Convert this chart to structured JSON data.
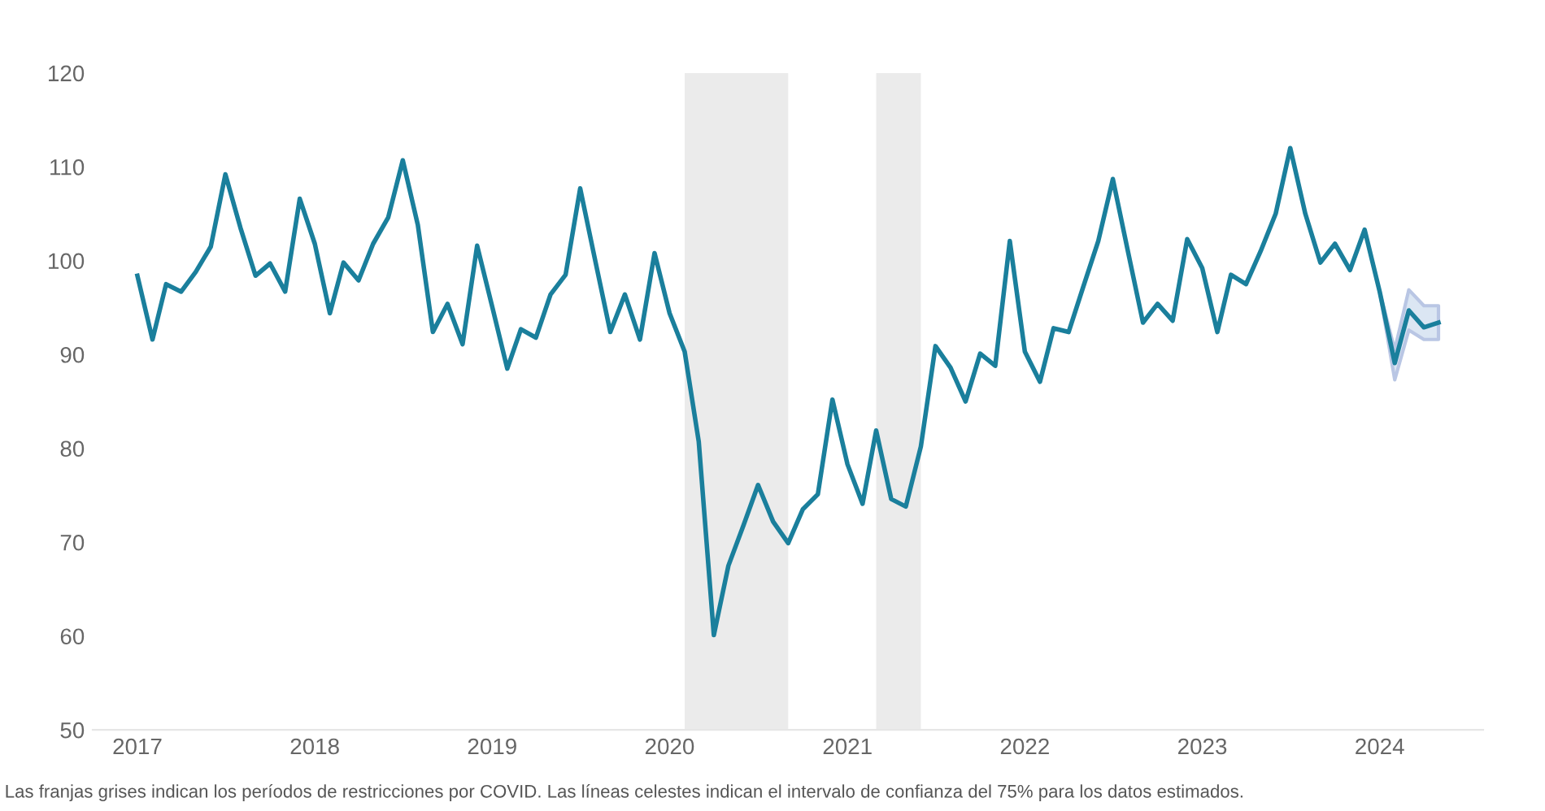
{
  "chart_data": {
    "type": "line",
    "x": [
      "2017-01",
      "2017-02",
      "2017-03",
      "2017-04",
      "2017-05",
      "2017-06",
      "2017-07",
      "2017-08",
      "2017-09",
      "2017-10",
      "2017-11",
      "2017-12",
      "2018-01",
      "2018-02",
      "2018-03",
      "2018-04",
      "2018-05",
      "2018-06",
      "2018-07",
      "2018-08",
      "2018-09",
      "2018-10",
      "2018-11",
      "2018-12",
      "2019-01",
      "2019-02",
      "2019-03",
      "2019-04",
      "2019-05",
      "2019-06",
      "2019-07",
      "2019-08",
      "2019-09",
      "2019-10",
      "2019-11",
      "2019-12",
      "2020-01",
      "2020-02",
      "2020-03",
      "2020-04",
      "2020-05",
      "2020-06",
      "2020-07",
      "2020-08",
      "2020-09",
      "2020-10",
      "2020-11",
      "2020-12",
      "2021-01",
      "2021-02",
      "2021-03",
      "2021-04",
      "2021-05",
      "2021-06",
      "2021-07",
      "2021-08",
      "2021-09",
      "2021-10",
      "2021-11",
      "2021-12",
      "2022-01",
      "2022-02",
      "2022-03",
      "2022-04",
      "2022-05",
      "2022-06",
      "2022-07",
      "2022-08",
      "2022-09",
      "2022-10",
      "2022-11",
      "2022-12",
      "2023-01",
      "2023-02",
      "2023-03",
      "2023-04",
      "2023-05",
      "2023-06",
      "2023-07",
      "2023-08",
      "2023-09",
      "2023-10",
      "2023-11",
      "2023-12",
      "2024-01",
      "2024-02",
      "2024-03",
      "2024-04",
      "2024-05"
    ],
    "series": [
      {
        "color": "#1a7f9c",
        "values": [
          98.4,
          91.6,
          97.5,
          96.7,
          98.8,
          101.5,
          109.2,
          103.5,
          98.4,
          99.7,
          96.7,
          106.6,
          101.8,
          94.4,
          99.8,
          97.9,
          101.8,
          104.6,
          110.7,
          103.8,
          92.4,
          95.4,
          91.1,
          101.6,
          95.1,
          88.5,
          92.7,
          91.8,
          96.4,
          98.5,
          107.7,
          100,
          92.4,
          96.4,
          91.6,
          100.8,
          94.4,
          90.3,
          80.7,
          60.1,
          67.5,
          71.8,
          76.1,
          72.2,
          69.9,
          73.5,
          75.1,
          85.2,
          78.3,
          74.1,
          81.9,
          74.6,
          73.8,
          80.2,
          90.9,
          88.6,
          85.0,
          90.1,
          88.8,
          102.1,
          90.3,
          87.1,
          92.8,
          92.4,
          97.2,
          102.1,
          108.7,
          101.0,
          93.4,
          95.4,
          93.6,
          102.3,
          99.2,
          92.4,
          98.5,
          97.5,
          101.0,
          105.0,
          112.0,
          105.0,
          99.8,
          101.8,
          99.0,
          103.3,
          96.7,
          89.1,
          94.7,
          92.9,
          93.4
        ],
        "lower": [
          null,
          null,
          null,
          null,
          null,
          null,
          null,
          null,
          null,
          null,
          null,
          null,
          null,
          null,
          null,
          null,
          null,
          null,
          null,
          null,
          null,
          null,
          null,
          null,
          null,
          null,
          null,
          null,
          null,
          null,
          null,
          null,
          null,
          null,
          null,
          null,
          null,
          null,
          null,
          null,
          null,
          null,
          null,
          null,
          null,
          null,
          null,
          null,
          null,
          null,
          null,
          null,
          null,
          null,
          null,
          null,
          null,
          null,
          null,
          null,
          null,
          null,
          null,
          null,
          null,
          null,
          null,
          null,
          null,
          null,
          null,
          null,
          null,
          null,
          null,
          null,
          null,
          null,
          null,
          null,
          null,
          null,
          null,
          null,
          96.7,
          87.3,
          92.6,
          91.6,
          91.6
        ],
        "upper": [
          null,
          null,
          null,
          null,
          null,
          null,
          null,
          null,
          null,
          null,
          null,
          null,
          null,
          null,
          null,
          null,
          null,
          null,
          null,
          null,
          null,
          null,
          null,
          null,
          null,
          null,
          null,
          null,
          null,
          null,
          null,
          null,
          null,
          null,
          null,
          null,
          null,
          null,
          null,
          null,
          null,
          null,
          null,
          null,
          null,
          null,
          null,
          null,
          null,
          null,
          null,
          null,
          null,
          null,
          null,
          null,
          null,
          null,
          null,
          null,
          null,
          null,
          null,
          null,
          null,
          null,
          null,
          null,
          null,
          null,
          null,
          null,
          null,
          null,
          null,
          null,
          null,
          null,
          null,
          null,
          null,
          null,
          null,
          null,
          96.7,
          90.5,
          96.9,
          95.2,
          95.2
        ]
      }
    ],
    "bands": [
      {
        "axis": "x",
        "from": "2020-02",
        "to": "2020-09",
        "color": "#ebebeb"
      },
      {
        "axis": "x",
        "from": "2021-03",
        "to": "2021-06",
        "color": "#ebebeb"
      }
    ],
    "xticks": [
      {
        "value": "2017",
        "label": "2017"
      },
      {
        "value": "2018",
        "label": "2018"
      },
      {
        "value": "2019",
        "label": "2019"
      },
      {
        "value": "2020",
        "label": "2020"
      },
      {
        "value": "2021",
        "label": "2021"
      },
      {
        "value": "2022",
        "label": "2022"
      },
      {
        "value": "2023",
        "label": "2023"
      },
      {
        "value": "2024",
        "label": "2024"
      }
    ],
    "xlim": [
      "2016-10",
      "2024-08"
    ],
    "ylim": [
      50,
      120
    ],
    "yticks": [
      50,
      60,
      70,
      80,
      90,
      100,
      110,
      120
    ],
    "grid": false,
    "annotations": [
      "Las franjas grises indican los períodos de restricciones por COVID. Las líneas celestes indican el intervalo de confianza del 75% para los datos estimados."
    ]
  }
}
